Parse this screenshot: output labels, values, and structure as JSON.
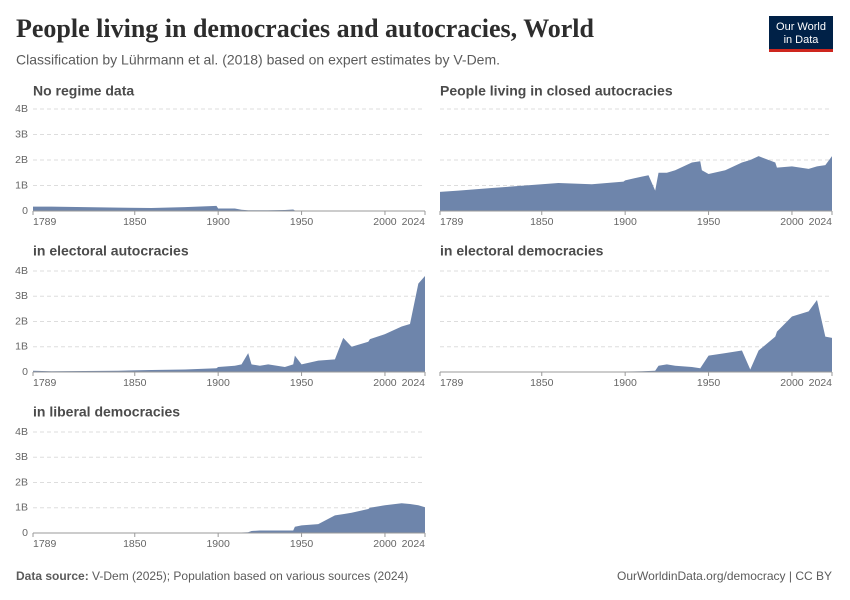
{
  "header": {
    "title": "People living in democracies and autocracies, World",
    "subtitle": "Classification by Lührmann et al. (2018) based on expert estimates by V-Dem.",
    "logo": [
      "Our World",
      "in Data"
    ]
  },
  "footer": {
    "source_label": "Data source:",
    "source": "V-Dem (2025); Population based on various sources (2024)",
    "link": "OurWorldinData.org/democracy | CC BY"
  },
  "chart_data": [
    {
      "type": "area",
      "title": "No regime data",
      "color": "#6e85ab",
      "x": [
        1789,
        1800,
        1820,
        1840,
        1860,
        1880,
        1899,
        1900,
        1910,
        1914,
        1918,
        1920,
        1925,
        1930,
        1940,
        1945,
        1946,
        1950,
        1960,
        1970,
        1975,
        1980,
        1990,
        1991,
        2000,
        2010,
        2015,
        2020,
        2024
      ],
      "values": [
        0.17,
        0.17,
        0.15,
        0.13,
        0.12,
        0.15,
        0.2,
        0.1,
        0.1,
        0.05,
        0.03,
        0.03,
        0.03,
        0.03,
        0.04,
        0.06,
        0.02,
        0,
        0,
        0,
        0,
        0.01,
        0,
        0.02,
        0,
        0,
        0,
        0,
        0
      ],
      "xlim": [
        1789,
        2024
      ],
      "xticks": [
        1789,
        1850,
        1900,
        1950,
        2000,
        2024
      ],
      "ylim": [
        0,
        4
      ],
      "yticks": [
        0,
        {
          "value": 1,
          "label": "1B"
        },
        {
          "value": 2,
          "label": "2B"
        },
        {
          "value": 3,
          "label": "3B"
        },
        {
          "value": 4,
          "label": "4B"
        }
      ],
      "grid": true
    },
    {
      "type": "area",
      "title": "People living in closed autocracies",
      "color": "#6e85ab",
      "x": [
        1789,
        1800,
        1820,
        1840,
        1860,
        1880,
        1899,
        1900,
        1910,
        1914,
        1918,
        1920,
        1925,
        1930,
        1940,
        1945,
        1946,
        1950,
        1960,
        1970,
        1975,
        1980,
        1990,
        1991,
        2000,
        2010,
        2015,
        2020,
        2024
      ],
      "values": [
        0.75,
        0.8,
        0.9,
        1.0,
        1.1,
        1.05,
        1.15,
        1.2,
        1.35,
        1.4,
        0.8,
        1.5,
        1.5,
        1.6,
        1.9,
        1.95,
        1.6,
        1.45,
        1.6,
        1.9,
        2.0,
        2.15,
        1.9,
        1.7,
        1.75,
        1.65,
        1.75,
        1.8,
        2.15
      ],
      "xlim": [
        1789,
        2024
      ],
      "xticks": [
        1789,
        1850,
        1900,
        1950,
        2000,
        2024
      ],
      "ylim": [
        0,
        4
      ],
      "yticks": [
        0,
        1,
        2,
        3,
        4
      ],
      "grid": true
    },
    {
      "type": "area",
      "title": "in electoral autocracies",
      "color": "#6e85ab",
      "x": [
        1789,
        1800,
        1820,
        1840,
        1860,
        1880,
        1899,
        1900,
        1910,
        1914,
        1918,
        1920,
        1925,
        1930,
        1940,
        1945,
        1946,
        1950,
        1960,
        1970,
        1975,
        1980,
        1990,
        1991,
        2000,
        2010,
        2015,
        2020,
        2024
      ],
      "values": [
        0.05,
        0.03,
        0.04,
        0.05,
        0.08,
        0.1,
        0.15,
        0.2,
        0.25,
        0.3,
        0.75,
        0.3,
        0.25,
        0.3,
        0.2,
        0.3,
        0.65,
        0.3,
        0.45,
        0.5,
        1.35,
        1.0,
        1.2,
        1.3,
        1.5,
        1.8,
        1.9,
        3.5,
        3.8
      ],
      "xlim": [
        1789,
        2024
      ],
      "xticks": [
        1789,
        1850,
        1900,
        1950,
        2000,
        2024
      ],
      "ylim": [
        0,
        4
      ],
      "yticks": [
        0,
        {
          "value": 1,
          "label": "1B"
        },
        {
          "value": 2,
          "label": "2B"
        },
        {
          "value": 3,
          "label": "3B"
        },
        {
          "value": 4,
          "label": "4B"
        }
      ],
      "grid": true
    },
    {
      "type": "area",
      "title": "in electoral democracies",
      "color": "#6e85ab",
      "x": [
        1789,
        1800,
        1820,
        1840,
        1860,
        1880,
        1899,
        1900,
        1910,
        1914,
        1918,
        1920,
        1925,
        1930,
        1940,
        1945,
        1946,
        1950,
        1960,
        1970,
        1975,
        1980,
        1990,
        1991,
        2000,
        2010,
        2015,
        2020,
        2024
      ],
      "values": [
        0,
        0,
        0,
        0,
        0,
        0,
        0.01,
        0.02,
        0.03,
        0.04,
        0.05,
        0.25,
        0.3,
        0.25,
        0.2,
        0.15,
        0.25,
        0.65,
        0.75,
        0.85,
        0.1,
        0.85,
        1.4,
        1.6,
        2.2,
        2.4,
        2.85,
        1.4,
        1.35
      ],
      "xlim": [
        1789,
        2024
      ],
      "xticks": [
        1789,
        1850,
        1900,
        1950,
        2000,
        2024
      ],
      "ylim": [
        0,
        4
      ],
      "yticks": [
        0,
        1,
        2,
        3,
        4
      ],
      "grid": true
    },
    {
      "type": "area",
      "title": "in liberal democracies",
      "color": "#6e85ab",
      "x": [
        1789,
        1800,
        1820,
        1840,
        1860,
        1880,
        1899,
        1900,
        1910,
        1914,
        1918,
        1920,
        1925,
        1930,
        1940,
        1945,
        1946,
        1950,
        1960,
        1970,
        1975,
        1980,
        1990,
        1991,
        2000,
        2010,
        2015,
        2020,
        2024
      ],
      "values": [
        0,
        0,
        0,
        0,
        0,
        0,
        0,
        0.01,
        0.02,
        0.02,
        0.03,
        0.08,
        0.1,
        0.1,
        0.1,
        0.1,
        0.25,
        0.3,
        0.35,
        0.7,
        0.75,
        0.8,
        0.95,
        1.0,
        1.1,
        1.18,
        1.15,
        1.1,
        1.02
      ],
      "xlim": [
        1789,
        2024
      ],
      "xticks": [
        1789,
        1850,
        1900,
        1950,
        2000,
        2024
      ],
      "ylim": [
        0,
        4
      ],
      "yticks": [
        0,
        {
          "value": 1,
          "label": "1B"
        },
        {
          "value": 2,
          "label": "2B"
        },
        {
          "value": 3,
          "label": "3B"
        },
        {
          "value": 4,
          "label": "4B"
        }
      ],
      "grid": true
    }
  ]
}
